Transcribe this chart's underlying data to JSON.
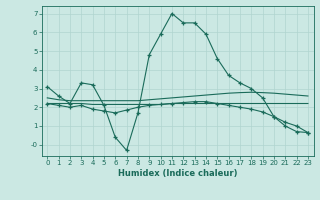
{
  "xlabel": "Humidex (Indice chaleur)",
  "background_color": "#cbe8e3",
  "grid_color": "#b0d5cf",
  "line_color": "#1a6b5a",
  "x_data": [
    0,
    1,
    2,
    3,
    4,
    5,
    6,
    7,
    8,
    9,
    10,
    11,
    12,
    13,
    14,
    15,
    16,
    17,
    18,
    19,
    20,
    21,
    22,
    23
  ],
  "series1": [
    3.1,
    2.6,
    2.2,
    3.3,
    3.2,
    2.1,
    0.4,
    -0.3,
    1.7,
    4.8,
    5.9,
    7.0,
    6.5,
    6.5,
    5.9,
    4.6,
    3.7,
    3.3,
    3.0,
    2.5,
    1.5,
    1.0,
    0.7,
    0.65
  ],
  "series2": [
    2.5,
    2.4,
    2.35,
    2.35,
    2.35,
    2.35,
    2.35,
    2.35,
    2.35,
    2.4,
    2.45,
    2.5,
    2.55,
    2.6,
    2.65,
    2.7,
    2.75,
    2.78,
    2.8,
    2.78,
    2.75,
    2.7,
    2.65,
    2.6
  ],
  "series3": [
    2.2,
    2.1,
    2.0,
    2.1,
    1.9,
    1.8,
    1.7,
    1.85,
    2.0,
    2.1,
    2.15,
    2.2,
    2.25,
    2.3,
    2.3,
    2.2,
    2.1,
    2.0,
    1.9,
    1.75,
    1.5,
    1.2,
    1.0,
    0.65
  ],
  "series4": [
    2.2,
    2.2,
    2.2,
    2.2,
    2.15,
    2.15,
    2.15,
    2.15,
    2.15,
    2.15,
    2.15,
    2.2,
    2.2,
    2.2,
    2.2,
    2.2,
    2.2,
    2.2,
    2.2,
    2.2,
    2.2,
    2.2,
    2.2,
    2.2
  ],
  "ylim": [
    -0.6,
    7.4
  ],
  "xlim": [
    -0.5,
    23.5
  ],
  "yticks": [
    0,
    1,
    2,
    3,
    4,
    5,
    6,
    7
  ],
  "ytick_labels": [
    "-0",
    "1",
    "2",
    "3",
    "4",
    "5",
    "6",
    "7"
  ],
  "xticks": [
    0,
    1,
    2,
    3,
    4,
    5,
    6,
    7,
    8,
    9,
    10,
    11,
    12,
    13,
    14,
    15,
    16,
    17,
    18,
    19,
    20,
    21,
    22,
    23
  ]
}
